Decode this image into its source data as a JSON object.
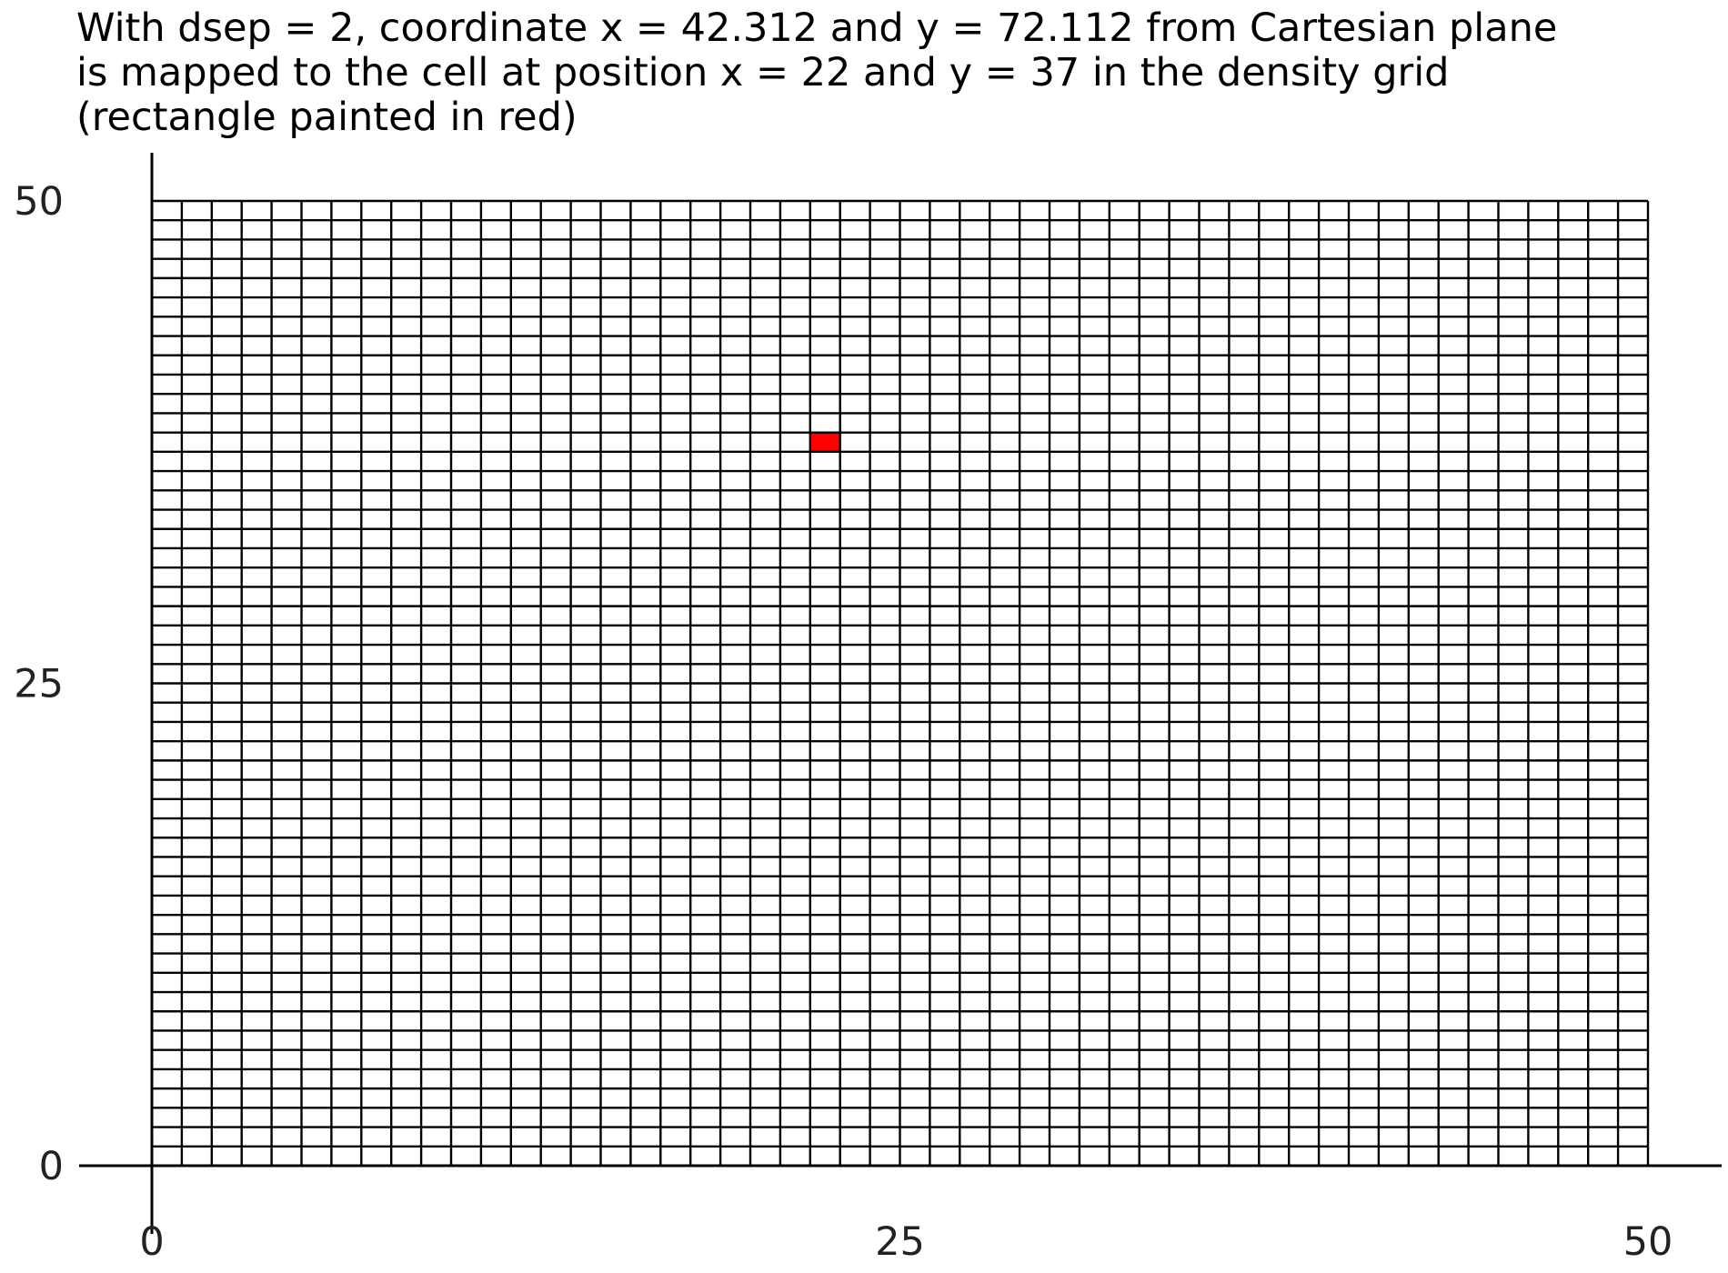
{
  "chart_data": {
    "type": "heatmap",
    "title_lines": [
      "With dsep = 2, coordinate x = 42.312 and y = 72.112 from Cartesian plane",
      "is mapped to the cell at position x = 22 and y = 37 in the density grid",
      "(rectangle painted in red)"
    ],
    "xlabel": "",
    "ylabel": "",
    "xlim": [
      0,
      50
    ],
    "ylim": [
      0,
      50
    ],
    "x_ticks": [
      0,
      25,
      50
    ],
    "y_ticks": [
      0,
      25,
      50
    ],
    "grid": {
      "columns": 50,
      "rows": 50
    },
    "highlighted_cell": {
      "x": 22,
      "y": 37,
      "color": "#ff0000"
    },
    "grid_line_color": "#000000",
    "background_color": "#ffffff"
  }
}
